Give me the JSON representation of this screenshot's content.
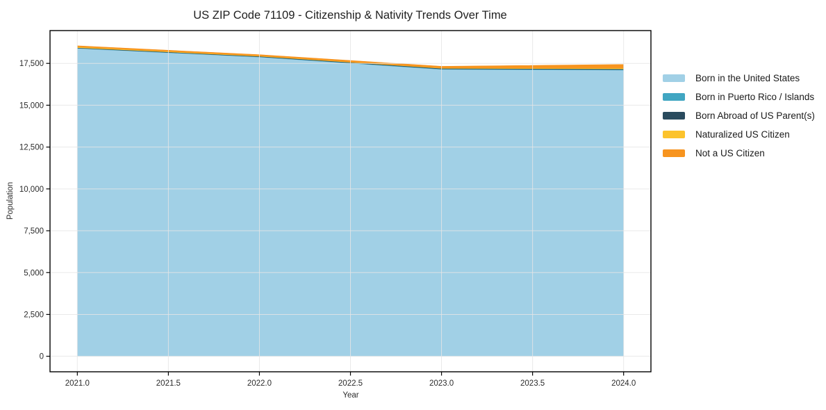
{
  "chart_data": {
    "type": "area",
    "stacked": true,
    "title": "US ZIP Code 71109 - Citizenship & Nativity Trends Over Time",
    "xlabel": "Year",
    "ylabel": "Population",
    "x": [
      2021,
      2022,
      2023,
      2024
    ],
    "series": [
      {
        "name": "Born in the United States",
        "color": "#a1d0e6",
        "values": [
          18400,
          17880,
          17140,
          17100
        ]
      },
      {
        "name": "Born in Puerto Rico / Islands",
        "color": "#41a6c2",
        "values": [
          15,
          15,
          30,
          30
        ]
      },
      {
        "name": "Born Abroad of US Parent(s)",
        "color": "#2a4b5e",
        "values": [
          25,
          30,
          35,
          40
        ]
      },
      {
        "name": "Naturalized US Citizen",
        "color": "#fcc32c",
        "values": [
          50,
          25,
          25,
          55
        ]
      },
      {
        "name": "Not a US Citizen",
        "color": "#f7941f",
        "values": [
          60,
          70,
          95,
          210
        ]
      }
    ],
    "x_ticks": [
      2021.0,
      2021.5,
      2022.0,
      2022.5,
      2023.0,
      2023.5,
      2024.0
    ],
    "x_tick_labels": [
      "2021.0",
      "2021.5",
      "2022.0",
      "2022.5",
      "2023.0",
      "2023.5",
      "2024.0"
    ],
    "y_ticks": [
      0,
      2500,
      5000,
      7500,
      10000,
      12500,
      15000,
      17500
    ],
    "y_tick_labels": [
      "0",
      "2,500",
      "5,000",
      "7,500",
      "10,000",
      "12,500",
      "15,000",
      "17,500"
    ],
    "xlim": [
      2020.85,
      2024.15
    ],
    "ylim": [
      -927,
      19460
    ],
    "grid": true,
    "legend_position": "right",
    "colors": {
      "grid": "#e6e6e6",
      "spine": "#000000",
      "tick_text": "#2b2b2b",
      "title_text": "#1f1f1f"
    }
  }
}
